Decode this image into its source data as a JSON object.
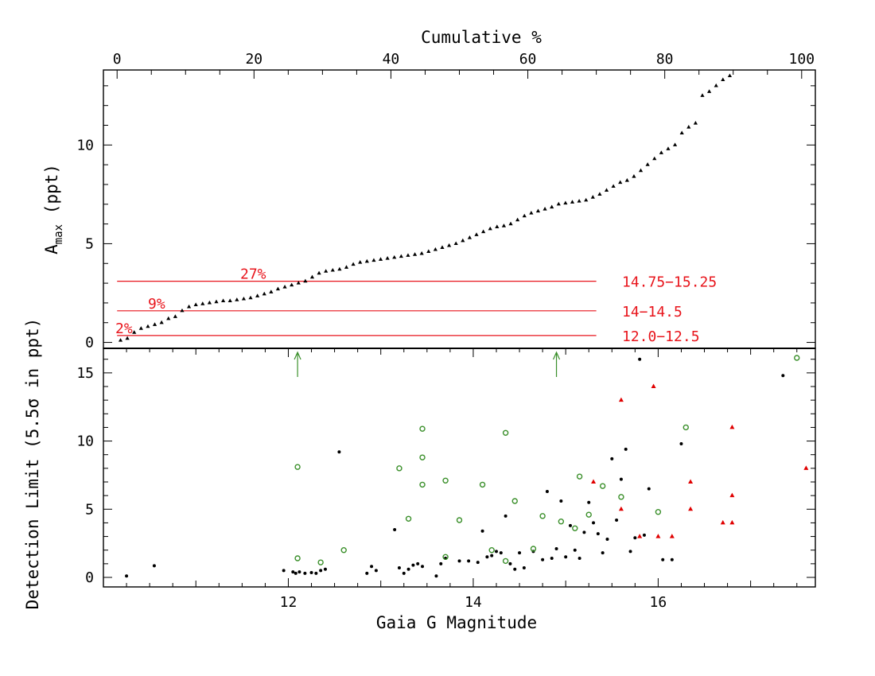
{
  "top_panel": {
    "top_axis_label": "Cumulative %",
    "top_ticks": [
      "0",
      "20",
      "40",
      "60",
      "80",
      "100"
    ],
    "y_label_main": "A",
    "y_label_sub": "max",
    "y_label_suffix": " (ppt)",
    "y_ticks": [
      "0",
      "5",
      "10"
    ],
    "ref_lines": [
      {
        "value": 0.35,
        "pct_label": "2%",
        "range_label": "12.0−12.5"
      },
      {
        "value": 1.6,
        "pct_label": "9%",
        "range_label": "14−14.5"
      },
      {
        "value": 3.1,
        "pct_label": "27%",
        "range_label": "14.75−15.25"
      }
    ]
  },
  "bottom_panel": {
    "x_label": "Gaia G Magnitude",
    "y_label": "Detection Limit (5.5σ in ppt)",
    "x_ticks": [
      "12",
      "14",
      "16"
    ],
    "y_ticks": [
      "0",
      "5",
      "10",
      "15"
    ],
    "arrow_markers": [
      12.1,
      14.9
    ]
  },
  "colors": {
    "axis": "#000000",
    "ref_line": "#e8141b",
    "open_circle": "#3a8f2a",
    "red_triangle": "#e00000",
    "arrow": "#3a8f2a"
  },
  "chart_data": [
    {
      "type": "scatter",
      "title": "",
      "xlabel": "Cumulative %",
      "ylabel": "Amax (ppt)",
      "xlim": [
        -2,
        102
      ],
      "ylim": [
        -0.3,
        13.8
      ],
      "series": [
        {
          "name": "Amax cumulative",
          "marker": "triangle",
          "points": [
            [
              0.5,
              0.1
            ],
            [
              1.5,
              0.2
            ],
            [
              2.5,
              0.5
            ],
            [
              3.5,
              0.7
            ],
            [
              4.5,
              0.8
            ],
            [
              5.5,
              0.9
            ],
            [
              6.5,
              1.0
            ],
            [
              7.5,
              1.2
            ],
            [
              8.5,
              1.3
            ],
            [
              9.5,
              1.6
            ],
            [
              10.5,
              1.8
            ],
            [
              11.5,
              1.9
            ],
            [
              12.5,
              1.95
            ],
            [
              13.5,
              2.0
            ],
            [
              14.5,
              2.05
            ],
            [
              15.5,
              2.1
            ],
            [
              16.5,
              2.1
            ],
            [
              17.5,
              2.15
            ],
            [
              18.5,
              2.2
            ],
            [
              19.5,
              2.25
            ],
            [
              20.5,
              2.35
            ],
            [
              21.5,
              2.45
            ],
            [
              22.5,
              2.55
            ],
            [
              23.5,
              2.7
            ],
            [
              24.5,
              2.8
            ],
            [
              25.5,
              2.9
            ],
            [
              26.5,
              3.0
            ],
            [
              27.5,
              3.1
            ],
            [
              28.5,
              3.3
            ],
            [
              29.5,
              3.5
            ],
            [
              30.5,
              3.6
            ],
            [
              31.5,
              3.65
            ],
            [
              32.5,
              3.7
            ],
            [
              33.5,
              3.8
            ],
            [
              34.5,
              3.95
            ],
            [
              35.5,
              4.05
            ],
            [
              36.5,
              4.1
            ],
            [
              37.5,
              4.15
            ],
            [
              38.5,
              4.2
            ],
            [
              39.5,
              4.25
            ],
            [
              40.5,
              4.3
            ],
            [
              41.5,
              4.35
            ],
            [
              42.5,
              4.4
            ],
            [
              43.5,
              4.45
            ],
            [
              44.5,
              4.5
            ],
            [
              45.5,
              4.6
            ],
            [
              46.5,
              4.7
            ],
            [
              47.5,
              4.8
            ],
            [
              48.5,
              4.9
            ],
            [
              49.5,
              5.0
            ],
            [
              50.5,
              5.15
            ],
            [
              51.5,
              5.3
            ],
            [
              52.5,
              5.45
            ],
            [
              53.5,
              5.6
            ],
            [
              54.5,
              5.75
            ],
            [
              55.5,
              5.85
            ],
            [
              56.5,
              5.9
            ],
            [
              57.5,
              6.0
            ],
            [
              58.5,
              6.2
            ],
            [
              59.5,
              6.4
            ],
            [
              60.5,
              6.55
            ],
            [
              61.5,
              6.65
            ],
            [
              62.5,
              6.75
            ],
            [
              63.5,
              6.85
            ],
            [
              64.5,
              7.0
            ],
            [
              65.5,
              7.05
            ],
            [
              66.5,
              7.1
            ],
            [
              67.5,
              7.15
            ],
            [
              68.5,
              7.2
            ],
            [
              69.5,
              7.35
            ],
            [
              70.5,
              7.5
            ],
            [
              71.5,
              7.7
            ],
            [
              72.5,
              7.9
            ],
            [
              73.5,
              8.1
            ],
            [
              74.5,
              8.2
            ],
            [
              75.5,
              8.4
            ],
            [
              76.5,
              8.7
            ],
            [
              77.5,
              9.0
            ],
            [
              78.5,
              9.3
            ],
            [
              79.5,
              9.6
            ],
            [
              80.5,
              9.8
            ],
            [
              81.5,
              10.0
            ],
            [
              82.5,
              10.6
            ],
            [
              83.5,
              10.9
            ],
            [
              84.5,
              11.1
            ],
            [
              85.5,
              12.5
            ],
            [
              86.5,
              12.7
            ],
            [
              87.5,
              13.0
            ],
            [
              88.5,
              13.3
            ],
            [
              89.5,
              13.5
            ]
          ]
        }
      ]
    },
    {
      "type": "scatter",
      "title": "",
      "xlabel": "Gaia G Magnitude",
      "ylabel": "Detection Limit (5.5σ in ppt)",
      "xlim": [
        10.0,
        17.7
      ],
      "ylim": [
        -0.7,
        16.8
      ],
      "series": [
        {
          "name": "black dots",
          "marker": "dot",
          "points": [
            [
              10.25,
              0.1
            ],
            [
              10.55,
              0.85
            ],
            [
              11.95,
              0.5
            ],
            [
              12.05,
              0.4
            ],
            [
              12.08,
              0.3
            ],
            [
              12.12,
              0.4
            ],
            [
              12.18,
              0.3
            ],
            [
              12.25,
              0.35
            ],
            [
              12.3,
              0.3
            ],
            [
              12.35,
              0.5
            ],
            [
              12.4,
              0.6
            ],
            [
              12.55,
              9.2
            ],
            [
              12.85,
              0.3
            ],
            [
              12.9,
              0.8
            ],
            [
              12.95,
              0.5
            ],
            [
              13.15,
              3.5
            ],
            [
              13.2,
              0.7
            ],
            [
              13.25,
              0.3
            ],
            [
              13.3,
              0.6
            ],
            [
              13.35,
              0.9
            ],
            [
              13.4,
              1.0
            ],
            [
              13.45,
              0.8
            ],
            [
              13.6,
              0.1
            ],
            [
              13.65,
              1.0
            ],
            [
              13.7,
              1.4
            ],
            [
              13.85,
              1.2
            ],
            [
              13.95,
              1.2
            ],
            [
              14.05,
              1.1
            ],
            [
              14.1,
              3.4
            ],
            [
              14.15,
              1.5
            ],
            [
              14.2,
              1.6
            ],
            [
              14.25,
              1.9
            ],
            [
              14.3,
              1.8
            ],
            [
              14.35,
              4.5
            ],
            [
              14.4,
              1.0
            ],
            [
              14.45,
              0.6
            ],
            [
              14.5,
              1.8
            ],
            [
              14.55,
              0.7
            ],
            [
              14.65,
              1.9
            ],
            [
              14.75,
              1.3
            ],
            [
              14.8,
              6.3
            ],
            [
              14.85,
              1.4
            ],
            [
              14.9,
              2.1
            ],
            [
              14.95,
              5.6
            ],
            [
              15.0,
              1.5
            ],
            [
              15.05,
              3.8
            ],
            [
              15.1,
              2.0
            ],
            [
              15.15,
              1.4
            ],
            [
              15.2,
              3.3
            ],
            [
              15.25,
              5.5
            ],
            [
              15.3,
              4.0
            ],
            [
              15.35,
              3.2
            ],
            [
              15.4,
              1.8
            ],
            [
              15.45,
              2.8
            ],
            [
              15.5,
              8.7
            ],
            [
              15.55,
              4.2
            ],
            [
              15.6,
              7.2
            ],
            [
              15.65,
              9.4
            ],
            [
              15.7,
              1.9
            ],
            [
              15.75,
              2.9
            ],
            [
              15.8,
              16.0
            ],
            [
              15.85,
              3.1
            ],
            [
              15.9,
              6.5
            ],
            [
              16.05,
              1.3
            ],
            [
              16.15,
              1.3
            ],
            [
              16.25,
              9.8
            ],
            [
              17.35,
              14.8
            ]
          ]
        },
        {
          "name": "green open circles",
          "marker": "open-circle",
          "points": [
            [
              12.1,
              8.1
            ],
            [
              12.1,
              1.4
            ],
            [
              12.35,
              1.1
            ],
            [
              12.6,
              2.0
            ],
            [
              13.2,
              8.0
            ],
            [
              13.3,
              4.3
            ],
            [
              13.45,
              10.9
            ],
            [
              13.45,
              8.8
            ],
            [
              13.45,
              6.8
            ],
            [
              13.7,
              7.1
            ],
            [
              13.7,
              1.5
            ],
            [
              13.85,
              4.2
            ],
            [
              14.1,
              6.8
            ],
            [
              14.2,
              2.0
            ],
            [
              14.35,
              10.6
            ],
            [
              14.35,
              1.2
            ],
            [
              14.45,
              5.6
            ],
            [
              14.65,
              2.1
            ],
            [
              14.75,
              4.5
            ],
            [
              14.95,
              4.1
            ],
            [
              15.1,
              3.6
            ],
            [
              15.15,
              7.4
            ],
            [
              15.25,
              4.6
            ],
            [
              15.4,
              6.7
            ],
            [
              15.6,
              5.9
            ],
            [
              16.0,
              4.8
            ],
            [
              16.3,
              11.0
            ],
            [
              17.5,
              16.1
            ]
          ]
        },
        {
          "name": "red triangles",
          "marker": "triangle",
          "points": [
            [
              15.3,
              7.0
            ],
            [
              15.6,
              13.0
            ],
            [
              15.6,
              5.0
            ],
            [
              15.8,
              3.0
            ],
            [
              15.95,
              14.0
            ],
            [
              16.0,
              3.0
            ],
            [
              16.15,
              3.0
            ],
            [
              16.35,
              7.0
            ],
            [
              16.35,
              5.0
            ],
            [
              16.7,
              4.0
            ],
            [
              16.8,
              11.0
            ],
            [
              16.8,
              6.0
            ],
            [
              16.8,
              4.0
            ],
            [
              17.6,
              8.0
            ]
          ]
        }
      ]
    }
  ]
}
